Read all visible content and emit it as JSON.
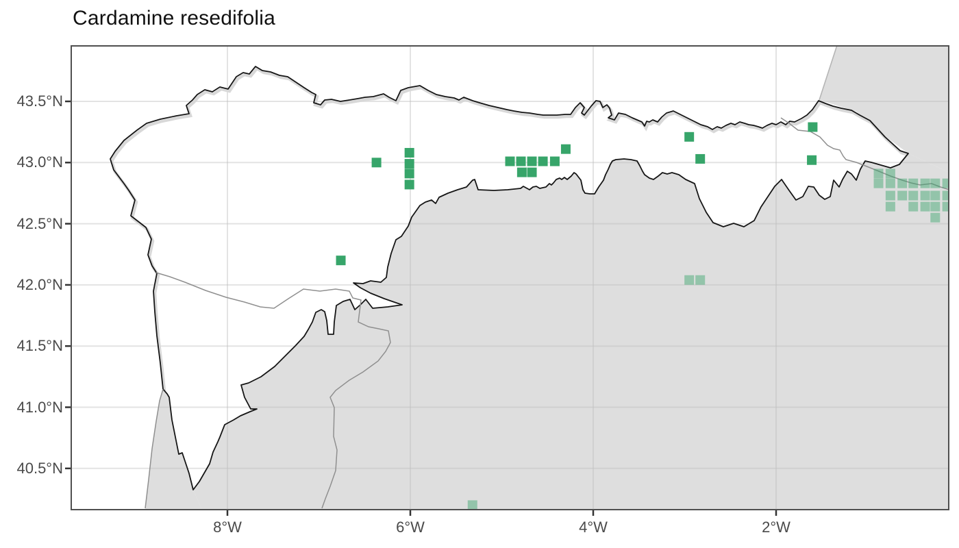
{
  "title": "Cardamine resedifolia",
  "colors": {
    "panel_border": "#4f4f4f",
    "grid_line": "#bdbdbd",
    "sea": "#ffffff",
    "study_area_fill": "#ffffff",
    "other_land_fill": "#dedede",
    "coast_line": "#151515",
    "coast_shadow": "#d8d8d8",
    "admin_border_line": "#8f8f8f",
    "occurrence_green": "#37a56a",
    "occurrence_light_green": "#8ec3a6",
    "tick_text": "#4a4a4a",
    "title_text": "#111111"
  },
  "axes": {
    "x_ticks": [
      {
        "label": "8°W",
        "lon": -8
      },
      {
        "label": "6°W",
        "lon": -6
      },
      {
        "label": "4°W",
        "lon": -4
      },
      {
        "label": "2°W",
        "lon": -2
      }
    ],
    "y_ticks": [
      {
        "label": "43.5°N",
        "lat": 43.5
      },
      {
        "label": "43.0°N",
        "lat": 43.0
      },
      {
        "label": "42.5°N",
        "lat": 42.5
      },
      {
        "label": "42.0°N",
        "lat": 42.0
      },
      {
        "label": "41.5°N",
        "lat": 41.5
      },
      {
        "label": "41.0°N",
        "lat": 41.0
      },
      {
        "label": "40.5°N",
        "lat": 40.5
      }
    ]
  },
  "chart_data": {
    "type": "scatter",
    "title": "Cardamine resedifolia",
    "symbol": "square",
    "x_axis": {
      "tick_labels": [
        "8°W",
        "6°W",
        "4°W",
        "2°W"
      ],
      "range_lon": [
        -9.72,
        -0.1
      ]
    },
    "y_axis": {
      "tick_labels": [
        "43.5°N",
        "43.0°N",
        "42.5°N",
        "42.0°N",
        "41.5°N",
        "41.0°N",
        "40.5°N"
      ],
      "range_lat": [
        40.16,
        43.96
      ]
    },
    "grid": true,
    "series": [
      {
        "name": "occurrences-dark-green",
        "color": "#37a56a",
        "opacity": 1,
        "points_lon_lat": [
          [
            -6.37,
            43.0
          ],
          [
            -6.01,
            43.08
          ],
          [
            -6.01,
            42.99
          ],
          [
            -6.01,
            42.91
          ],
          [
            -6.01,
            42.82
          ],
          [
            -4.91,
            43.01
          ],
          [
            -4.79,
            43.01
          ],
          [
            -4.67,
            43.01
          ],
          [
            -4.55,
            43.01
          ],
          [
            -4.42,
            43.01
          ],
          [
            -4.78,
            42.92
          ],
          [
            -4.67,
            42.92
          ],
          [
            -4.3,
            43.11
          ],
          [
            -2.95,
            43.21
          ],
          [
            -2.83,
            43.03
          ],
          [
            -1.6,
            43.29
          ],
          [
            -1.61,
            43.02
          ],
          [
            -6.76,
            42.2
          ]
        ]
      },
      {
        "name": "occurrences-light-green",
        "color": "#37a56a",
        "opacity": 0.45,
        "points_lon_lat": [
          [
            -2.95,
            42.04
          ],
          [
            -2.83,
            42.04
          ],
          [
            -5.32,
            40.2
          ],
          [
            -0.88,
            42.91
          ],
          [
            -0.75,
            42.91
          ],
          [
            -0.88,
            42.83
          ],
          [
            -0.75,
            42.83
          ],
          [
            -0.62,
            42.83
          ],
          [
            -0.5,
            42.83
          ],
          [
            -0.37,
            42.83
          ],
          [
            -0.26,
            42.83
          ],
          [
            -0.13,
            42.83
          ],
          [
            -0.75,
            42.73
          ],
          [
            -0.62,
            42.73
          ],
          [
            -0.5,
            42.73
          ],
          [
            -0.37,
            42.73
          ],
          [
            -0.26,
            42.73
          ],
          [
            -0.13,
            42.73
          ],
          [
            -0.75,
            42.64
          ],
          [
            -0.5,
            42.64
          ],
          [
            -0.37,
            42.64
          ],
          [
            -0.26,
            42.64
          ],
          [
            -0.13,
            42.64
          ],
          [
            -0.26,
            42.55
          ]
        ]
      }
    ]
  }
}
